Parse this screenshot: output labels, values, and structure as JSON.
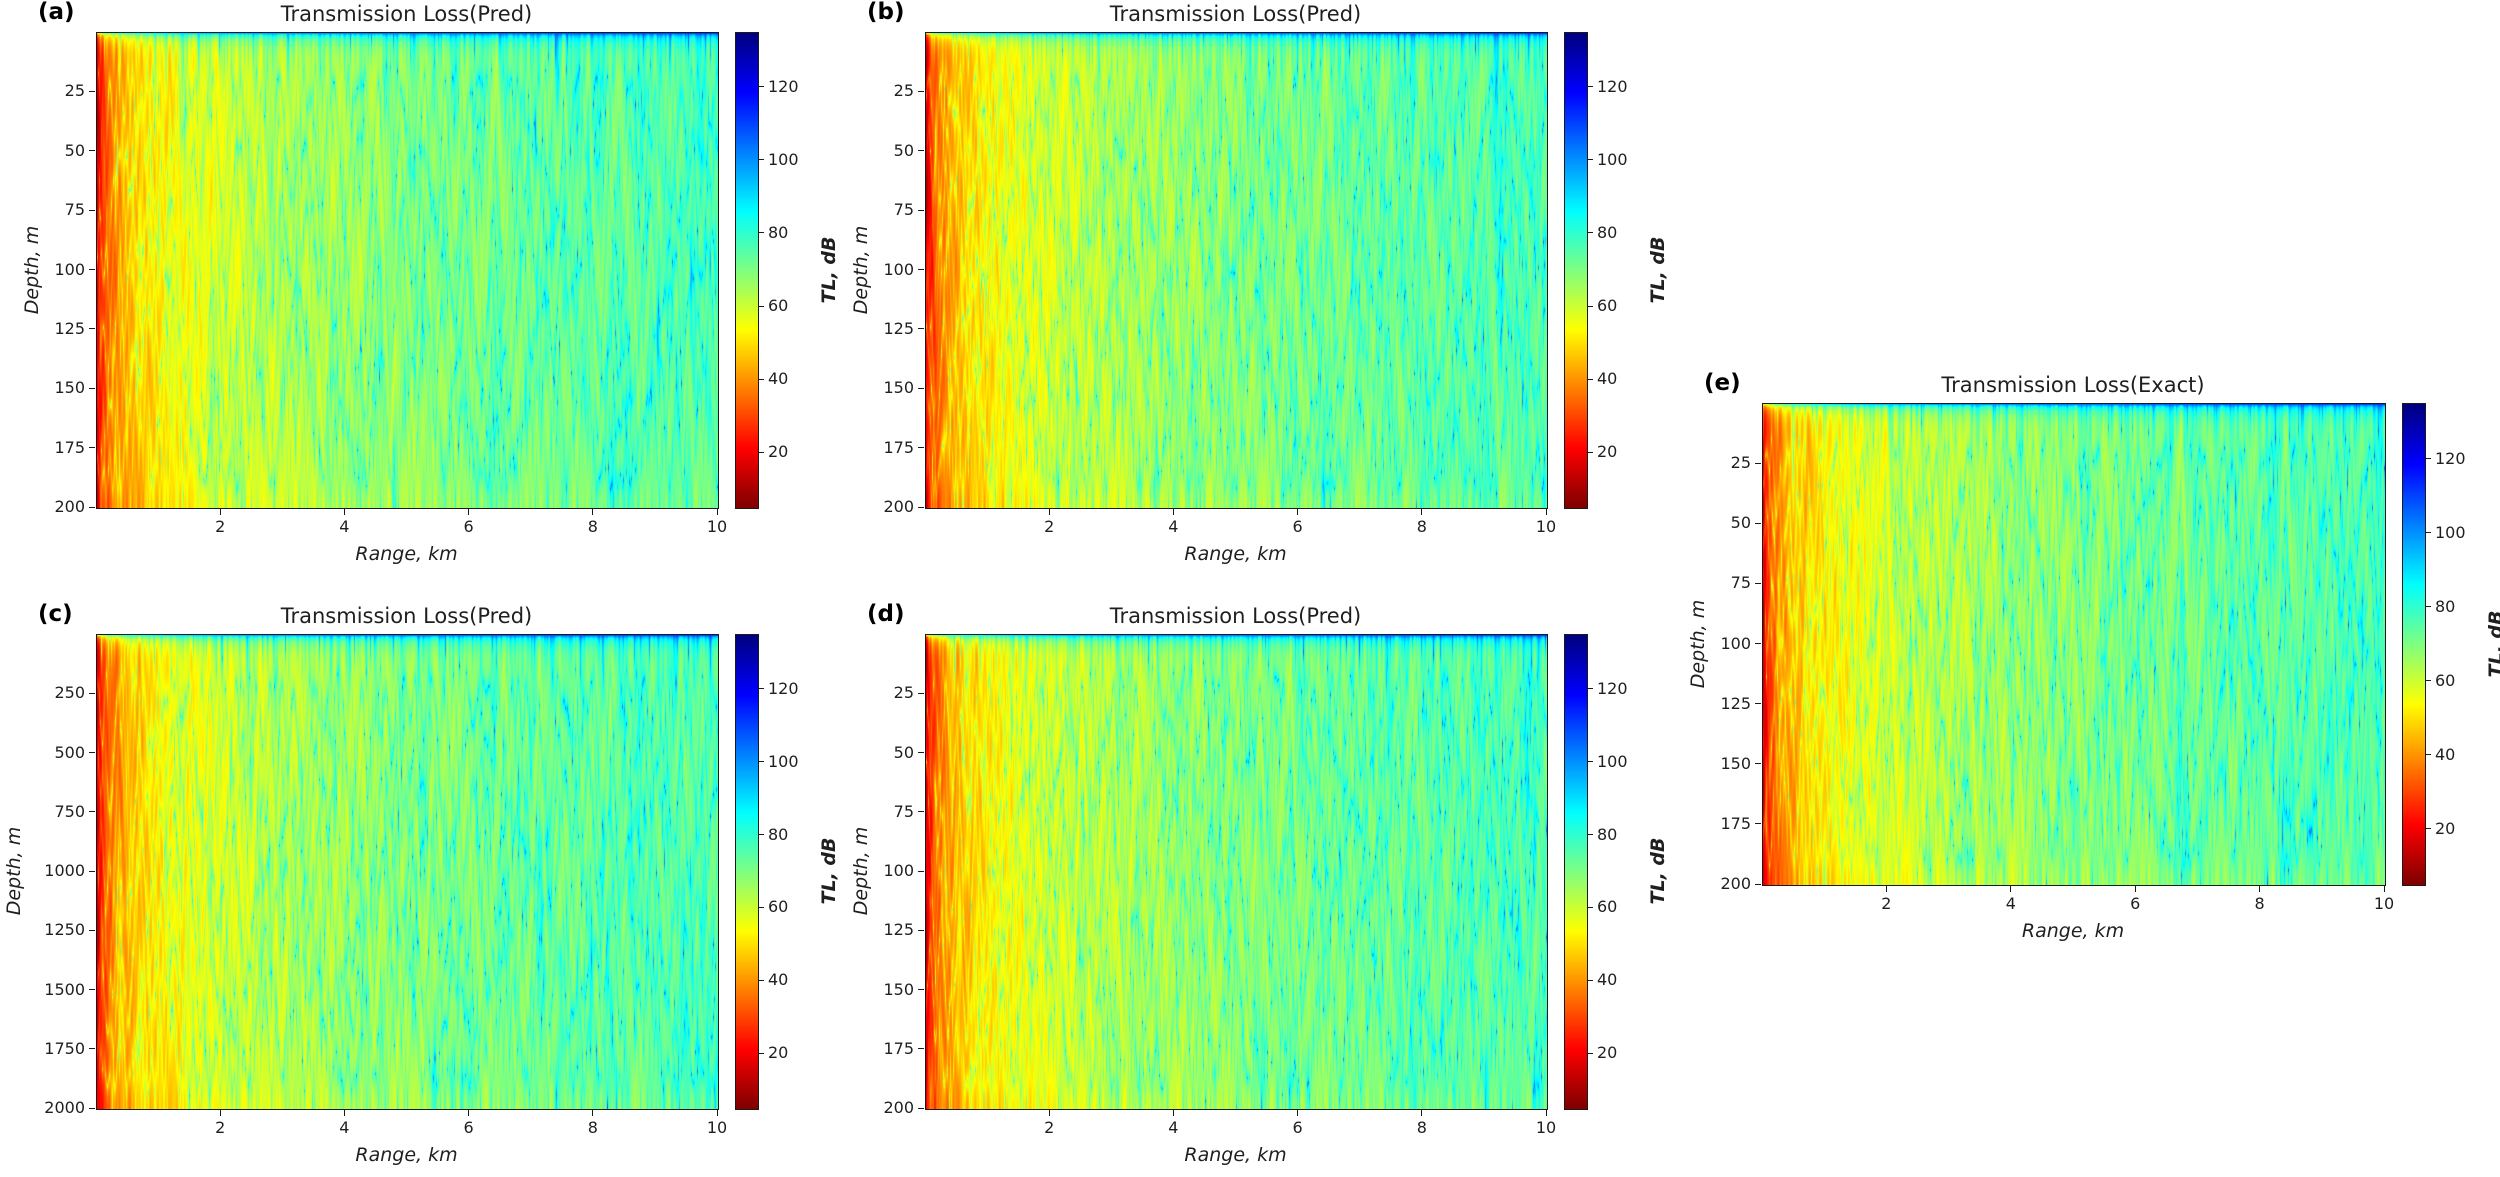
{
  "figure": {
    "background": "#ffffff",
    "colorbar": {
      "label": "TL, dB",
      "ticks": [
        20,
        40,
        60,
        80,
        100,
        120
      ],
      "vmin": 5,
      "vmax": 135
    },
    "panels": [
      {
        "label": "(a)",
        "title": "Transmission Loss(Pred)",
        "xlabel": "Range, km",
        "ylabel": "Depth, m",
        "x_range": [
          0,
          10
        ],
        "x_ticks": [
          2,
          4,
          6,
          8,
          10
        ],
        "y_range": [
          0,
          200
        ],
        "y_ticks": [
          25,
          50,
          75,
          100,
          125,
          150,
          175,
          200
        ]
      },
      {
        "label": "(b)",
        "title": "Transmission Loss(Pred)",
        "xlabel": "Range, km",
        "ylabel": "Depth, m",
        "x_range": [
          0,
          10
        ],
        "x_ticks": [
          2,
          4,
          6,
          8,
          10
        ],
        "y_range": [
          0,
          200
        ],
        "y_ticks": [
          25,
          50,
          75,
          100,
          125,
          150,
          175,
          200
        ]
      },
      {
        "label": "(c)",
        "title": "Transmission Loss(Pred)",
        "xlabel": "Range, km",
        "ylabel": "Depth, m",
        "x_range": [
          0,
          10
        ],
        "x_ticks": [
          2,
          4,
          6,
          8,
          10
        ],
        "y_range": [
          0,
          2000
        ],
        "y_ticks": [
          250,
          500,
          750,
          1000,
          1250,
          1500,
          1750,
          2000
        ]
      },
      {
        "label": "(d)",
        "title": "Transmission Loss(Pred)",
        "xlabel": "Range, km",
        "ylabel": "Depth, m",
        "x_range": [
          0,
          10
        ],
        "x_ticks": [
          2,
          4,
          6,
          8,
          10
        ],
        "y_range": [
          0,
          200
        ],
        "y_ticks": [
          25,
          50,
          75,
          100,
          125,
          150,
          175,
          200
        ]
      },
      {
        "label": "(e)",
        "title": "Transmission Loss(Exact)",
        "xlabel": "Range, km",
        "ylabel": "Depth, m",
        "x_range": [
          0,
          10
        ],
        "x_ticks": [
          2,
          4,
          6,
          8,
          10
        ],
        "y_range": [
          0,
          200
        ],
        "y_ticks": [
          25,
          50,
          75,
          100,
          125,
          150,
          175,
          200
        ]
      }
    ]
  },
  "chart_data": {
    "type": "heatmap",
    "n_panels": 5,
    "colormap": "jet reversed (red = low TL near source, yellow/green mid-range, cyan/blue = high TL)",
    "colorbar": {
      "label": "TL, dB",
      "ticks": [
        20,
        40,
        60,
        80,
        100,
        120
      ],
      "range_db": [
        5,
        135
      ]
    },
    "x_axis": {
      "label": "Range, km",
      "range": [
        0,
        10
      ],
      "ticks": [
        2,
        4,
        6,
        8,
        10
      ]
    },
    "tl_vs_range_db_mid_depth": [
      [
        0.1,
        27
      ],
      [
        0.3,
        38
      ],
      [
        0.5,
        42
      ],
      [
        1,
        51
      ],
      [
        2,
        57
      ],
      [
        3,
        63
      ],
      [
        5,
        67
      ],
      [
        8,
        72
      ],
      [
        10,
        75
      ]
    ],
    "pattern": "Acoustic transmission-loss field: red/orange low-TL column within ~0.5 km of the source, grading through yellow (0.5-2 km) and green (2-6 km) to green-cyan (6-10 km); thin dark high-TL layer at zero depth with dark-blue vertical interference plumes descending from the surface and fine vertical modal striations at all ranges.",
    "panels": [
      {
        "panel": "(a)",
        "title": "Transmission Loss(Pred)",
        "ylabel": "Depth, m",
        "depth_range_m": [
          0,
          200
        ],
        "y_ticks": [
          25,
          50,
          75,
          100,
          125,
          150,
          175,
          200
        ]
      },
      {
        "panel": "(b)",
        "title": "Transmission Loss(Pred)",
        "ylabel": "Depth, m",
        "depth_range_m": [
          0,
          200
        ],
        "y_ticks": [
          25,
          50,
          75,
          100,
          125,
          150,
          175,
          200
        ]
      },
      {
        "panel": "(c)",
        "title": "Transmission Loss(Pred)",
        "ylabel": "Depth, m",
        "depth_range_m": [
          0,
          2000
        ],
        "y_ticks": [
          250,
          500,
          750,
          1000,
          1250,
          1500,
          1750,
          2000
        ]
      },
      {
        "panel": "(d)",
        "title": "Transmission Loss(Pred)",
        "ylabel": "Depth, m",
        "depth_range_m": [
          0,
          200
        ],
        "y_ticks": [
          25,
          50,
          75,
          100,
          125,
          150,
          175,
          200
        ]
      },
      {
        "panel": "(e)",
        "title": "Transmission Loss(Exact)",
        "ylabel": "Depth, m",
        "depth_range_m": [
          0,
          200
        ],
        "y_ticks": [
          25,
          50,
          75,
          100,
          125,
          150,
          175,
          200
        ]
      }
    ]
  }
}
